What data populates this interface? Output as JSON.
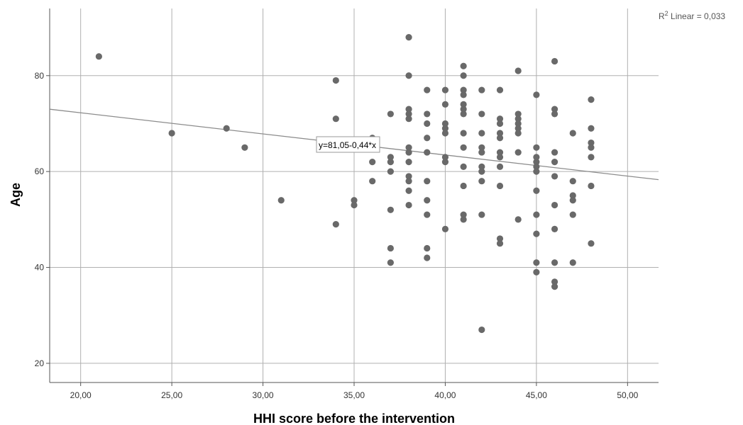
{
  "chart_data": {
    "type": "scatter",
    "xlabel": "HHI score before the intervention",
    "ylabel": "Age",
    "xlim": [
      18.3,
      51.7
    ],
    "ylim": [
      16.0,
      94.0
    ],
    "xticks": [
      20,
      25,
      30,
      35,
      40,
      45,
      50
    ],
    "xtick_labels": [
      "20,00",
      "25,00",
      "30,00",
      "35,00",
      "40,00",
      "45,00",
      "50,00"
    ],
    "yticks": [
      20,
      40,
      60,
      80
    ],
    "ytick_labels": [
      "20",
      "40",
      "60",
      "80"
    ],
    "grid": true,
    "point_color": "#696969",
    "line_color": "#8c8c8c",
    "fit_line": {
      "intercept": 81.05,
      "slope": -0.44
    },
    "fit_equation": "y=81,05-0,44*x",
    "r2_prefix": "R",
    "r2_sup": "2",
    "r2_suffix": " Linear = 0,033",
    "points": [
      [
        21,
        84
      ],
      [
        25,
        68
      ],
      [
        28,
        69
      ],
      [
        29,
        65
      ],
      [
        31,
        54
      ],
      [
        34,
        79
      ],
      [
        34,
        71
      ],
      [
        34,
        49
      ],
      [
        35,
        54
      ],
      [
        35,
        53
      ],
      [
        36,
        67
      ],
      [
        36,
        62
      ],
      [
        36,
        58
      ],
      [
        37,
        72
      ],
      [
        37,
        63
      ],
      [
        37,
        62
      ],
      [
        37,
        60
      ],
      [
        37,
        52
      ],
      [
        37,
        44
      ],
      [
        37,
        41
      ],
      [
        38,
        88
      ],
      [
        38,
        80
      ],
      [
        38,
        73
      ],
      [
        38,
        72
      ],
      [
        38,
        71
      ],
      [
        38,
        65
      ],
      [
        38,
        64
      ],
      [
        38,
        62
      ],
      [
        38,
        59
      ],
      [
        38,
        58
      ],
      [
        38,
        56
      ],
      [
        38,
        53
      ],
      [
        39,
        77
      ],
      [
        39,
        72
      ],
      [
        39,
        70
      ],
      [
        39,
        67
      ],
      [
        39,
        64
      ],
      [
        39,
        58
      ],
      [
        39,
        54
      ],
      [
        39,
        51
      ],
      [
        39,
        44
      ],
      [
        39,
        42
      ],
      [
        40,
        77
      ],
      [
        40,
        74
      ],
      [
        40,
        70
      ],
      [
        40,
        69
      ],
      [
        40,
        68
      ],
      [
        40,
        63
      ],
      [
        40,
        62
      ],
      [
        40,
        48
      ],
      [
        41,
        82
      ],
      [
        41,
        80
      ],
      [
        41,
        77
      ],
      [
        41,
        76
      ],
      [
        41,
        74
      ],
      [
        41,
        73
      ],
      [
        41,
        72
      ],
      [
        41,
        68
      ],
      [
        41,
        65
      ],
      [
        41,
        61
      ],
      [
        41,
        57
      ],
      [
        41,
        51
      ],
      [
        41,
        50
      ],
      [
        42,
        77
      ],
      [
        42,
        72
      ],
      [
        42,
        68
      ],
      [
        42,
        65
      ],
      [
        42,
        64
      ],
      [
        42,
        61
      ],
      [
        42,
        60
      ],
      [
        42,
        58
      ],
      [
        42,
        51
      ],
      [
        42,
        27
      ],
      [
        43,
        77
      ],
      [
        43,
        71
      ],
      [
        43,
        70
      ],
      [
        43,
        68
      ],
      [
        43,
        67
      ],
      [
        43,
        64
      ],
      [
        43,
        63
      ],
      [
        43,
        61
      ],
      [
        43,
        57
      ],
      [
        43,
        46
      ],
      [
        43,
        45
      ],
      [
        44,
        81
      ],
      [
        44,
        72
      ],
      [
        44,
        71
      ],
      [
        44,
        70
      ],
      [
        44,
        69
      ],
      [
        44,
        68
      ],
      [
        44,
        64
      ],
      [
        44,
        50
      ],
      [
        45,
        76
      ],
      [
        45,
        65
      ],
      [
        45,
        63
      ],
      [
        45,
        62
      ],
      [
        45,
        61
      ],
      [
        45,
        60
      ],
      [
        45,
        56
      ],
      [
        45,
        51
      ],
      [
        45,
        47
      ],
      [
        45,
        41
      ],
      [
        45,
        39
      ],
      [
        46,
        83
      ],
      [
        46,
        73
      ],
      [
        46,
        72
      ],
      [
        46,
        64
      ],
      [
        46,
        62
      ],
      [
        46,
        59
      ],
      [
        46,
        53
      ],
      [
        46,
        48
      ],
      [
        46,
        41
      ],
      [
        46,
        37
      ],
      [
        46,
        36
      ],
      [
        47,
        68
      ],
      [
        47,
        58
      ],
      [
        47,
        55
      ],
      [
        47,
        54
      ],
      [
        47,
        51
      ],
      [
        47,
        41
      ],
      [
        48,
        75
      ],
      [
        48,
        69
      ],
      [
        48,
        66
      ],
      [
        48,
        65
      ],
      [
        48,
        63
      ],
      [
        48,
        57
      ],
      [
        48,
        45
      ]
    ]
  }
}
